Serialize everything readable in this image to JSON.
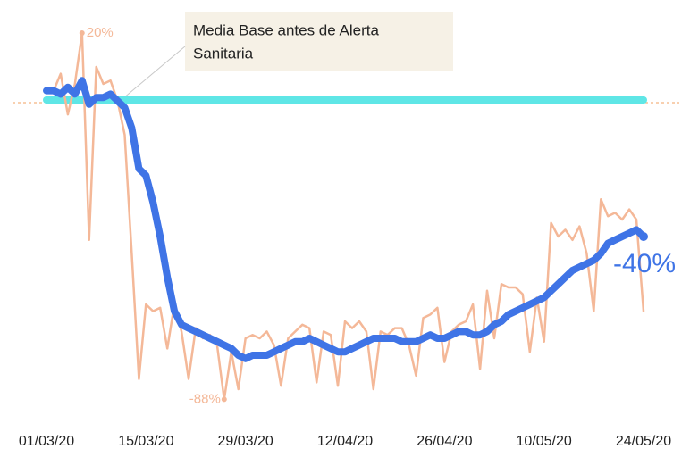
{
  "chart_data": {
    "type": "line",
    "annotation": {
      "lines": [
        "Media Base antes de Alerta",
        "Sanitaria"
      ]
    },
    "baseline": {
      "value": 0,
      "color": "#5fe6e6",
      "dash_color": "#f0a060"
    },
    "categories": [
      "01/03/20",
      null,
      null,
      null,
      null,
      null,
      null,
      null,
      null,
      null,
      null,
      null,
      null,
      null,
      "15/03/20",
      null,
      null,
      null,
      null,
      null,
      null,
      null,
      null,
      null,
      null,
      null,
      null,
      null,
      "29/03/20",
      null,
      null,
      null,
      null,
      null,
      null,
      null,
      null,
      null,
      null,
      null,
      null,
      null,
      "12/04/20",
      null,
      null,
      null,
      null,
      null,
      null,
      null,
      null,
      null,
      null,
      null,
      null,
      null,
      "26/04/20",
      null,
      null,
      null,
      null,
      null,
      null,
      null,
      null,
      null,
      null,
      null,
      null,
      null,
      "10/05/20",
      null,
      null,
      null,
      null,
      null,
      null,
      null,
      null,
      null,
      null,
      null,
      null,
      null,
      "24/05/20"
    ],
    "series": [
      {
        "color": "#f4b898",
        "width": 2.5,
        "values": [
          3,
          3,
          8,
          -4,
          5,
          20,
          -41,
          10,
          5,
          6,
          0,
          -10,
          -45,
          -82,
          -60,
          -62,
          -61,
          -73,
          -60,
          -68,
          -82,
          -67,
          -70,
          -69,
          -72,
          -88,
          -74,
          -85,
          -70,
          -69,
          -70,
          -68,
          -72,
          -84,
          -70,
          -68,
          -66,
          -67,
          -83,
          -68,
          -69,
          -84,
          -65,
          -67,
          -65,
          -68,
          -85,
          -68,
          -69,
          -67,
          -67,
          -72,
          -81,
          -64,
          -63,
          -61,
          -77,
          -68,
          -66,
          -65,
          -60,
          -79,
          -56,
          -70,
          -54,
          -55,
          -55,
          -57,
          -74,
          -58,
          -71,
          -36,
          -40,
          -38,
          -41,
          -37,
          -45,
          -62,
          -29,
          -34,
          -33,
          -35,
          -32,
          -35,
          -62
        ],
        "value_labels": [
          null,
          null,
          null,
          null,
          null,
          "20%",
          null,
          null,
          null,
          null,
          null,
          null,
          null,
          null,
          null,
          null,
          null,
          null,
          null,
          null,
          null,
          null,
          null,
          null,
          null,
          "-88%",
          null,
          null,
          null,
          null,
          null,
          null,
          null,
          null,
          null,
          null,
          null,
          null,
          null,
          null,
          null,
          null,
          null,
          null,
          null,
          null,
          null,
          null,
          null,
          null,
          null,
          null,
          null,
          null,
          null,
          null,
          null,
          null,
          null,
          null,
          null,
          null,
          null,
          null,
          null,
          null,
          null,
          null,
          null,
          null,
          null,
          null,
          null,
          null,
          null,
          null,
          null,
          null,
          null,
          null,
          null,
          null,
          null,
          null,
          null
        ]
      },
      {
        "color": "#3f74e6",
        "width": 8,
        "values": [
          3,
          3,
          2,
          4,
          2,
          6,
          -1,
          1,
          1,
          2,
          0,
          -2,
          -8,
          -20,
          -22,
          -30,
          -40,
          -52,
          -62,
          -66,
          -67,
          -68,
          -69,
          -70,
          -71,
          -72,
          -73,
          -75,
          -76,
          -75,
          -75,
          -75,
          -74,
          -73,
          -72,
          -71,
          -71,
          -70,
          -71,
          -72,
          -73,
          -74,
          -74,
          -73,
          -72,
          -71,
          -70,
          -70,
          -70,
          -70,
          -71,
          -71,
          -71,
          -70,
          -69,
          -70,
          -70,
          -69,
          -68,
          -68,
          -69,
          -69,
          -68,
          -66,
          -65,
          -63,
          -62,
          -61,
          -60,
          -59,
          -58,
          -56,
          -54,
          -52,
          -50,
          -49,
          -48,
          -47,
          -45,
          -42,
          -41,
          -40,
          -39,
          -38,
          -40
        ],
        "value_labels": [
          null,
          null,
          null,
          null,
          null,
          null,
          null,
          null,
          null,
          null,
          null,
          null,
          null,
          null,
          null,
          null,
          null,
          null,
          null,
          null,
          null,
          null,
          null,
          null,
          null,
          null,
          null,
          null,
          null,
          null,
          null,
          null,
          null,
          null,
          null,
          null,
          null,
          null,
          null,
          null,
          null,
          null,
          null,
          null,
          null,
          null,
          null,
          null,
          null,
          null,
          null,
          null,
          null,
          null,
          null,
          null,
          null,
          null,
          null,
          null,
          null,
          null,
          null,
          null,
          null,
          null,
          null,
          null,
          null,
          null,
          null,
          null,
          null,
          null,
          null,
          null,
          null,
          null,
          null,
          null,
          null,
          null,
          null,
          null,
          "-40%"
        ]
      }
    ],
    "ylim": [
      -100,
      25
    ]
  }
}
